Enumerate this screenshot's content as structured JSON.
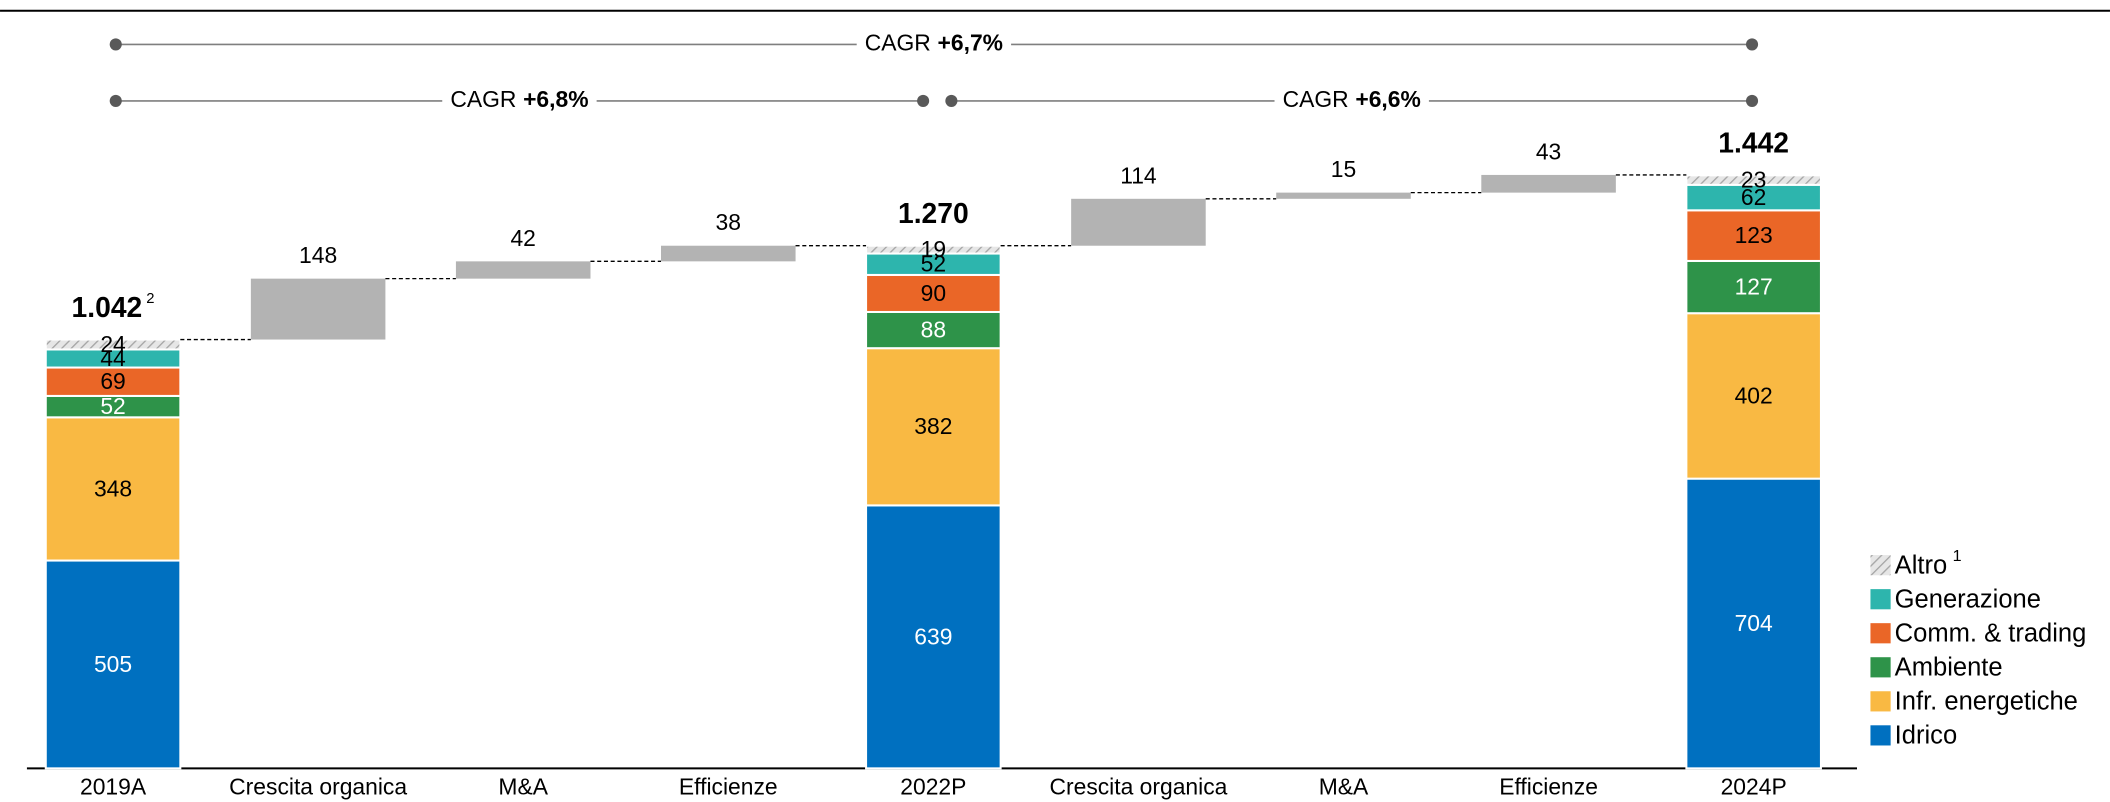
{
  "chart_data": {
    "type": "waterfall",
    "categories": [
      "2019A",
      "Crescita organica",
      "M&A",
      "Efficienze",
      "2022P",
      "Crescita organica",
      "M&A",
      "Efficienze",
      "2024P"
    ],
    "series": [
      {
        "name": "Idrico",
        "color": "#0070c0",
        "values": [
          505,
          null,
          null,
          null,
          639,
          null,
          null,
          null,
          704
        ]
      },
      {
        "name": "Infr. energetiche",
        "color": "#f9b943",
        "values": [
          348,
          null,
          null,
          null,
          382,
          null,
          null,
          null,
          402
        ]
      },
      {
        "name": "Ambiente",
        "color": "#2e9349",
        "values": [
          52,
          null,
          null,
          null,
          88,
          null,
          null,
          null,
          127
        ]
      },
      {
        "name": "Comm. & trading",
        "color": "#ea6627",
        "values": [
          69,
          null,
          null,
          null,
          90,
          null,
          null,
          null,
          123
        ]
      },
      {
        "name": "Generazione",
        "color": "#2db5ad",
        "values": [
          44,
          null,
          null,
          null,
          52,
          null,
          null,
          null,
          62
        ]
      },
      {
        "name": "Altro",
        "footnote": "1",
        "color": "#bdbdbd",
        "hatch": true,
        "values": [
          24,
          null,
          null,
          null,
          19,
          null,
          null,
          null,
          23
        ]
      }
    ],
    "increments": {
      "color": "#b3b3b3",
      "values": [
        null,
        148,
        42,
        38,
        null,
        114,
        15,
        43,
        null
      ]
    },
    "totals": {
      "values": [
        1042,
        null,
        null,
        null,
        1270,
        null,
        null,
        null,
        1442
      ],
      "value_labels": [
        "1.042",
        null,
        null,
        null,
        "1.270",
        null,
        null,
        null,
        "1.442"
      ],
      "footnotes": [
        "2",
        null,
        null,
        null,
        null,
        null,
        null,
        null,
        null
      ]
    },
    "annotations": [
      {
        "text": "CAGR",
        "value": "+6,7%"
      },
      {
        "text": "CAGR",
        "value": "+6,8%"
      },
      {
        "text": "CAGR",
        "value": "+6,6%"
      }
    ]
  }
}
